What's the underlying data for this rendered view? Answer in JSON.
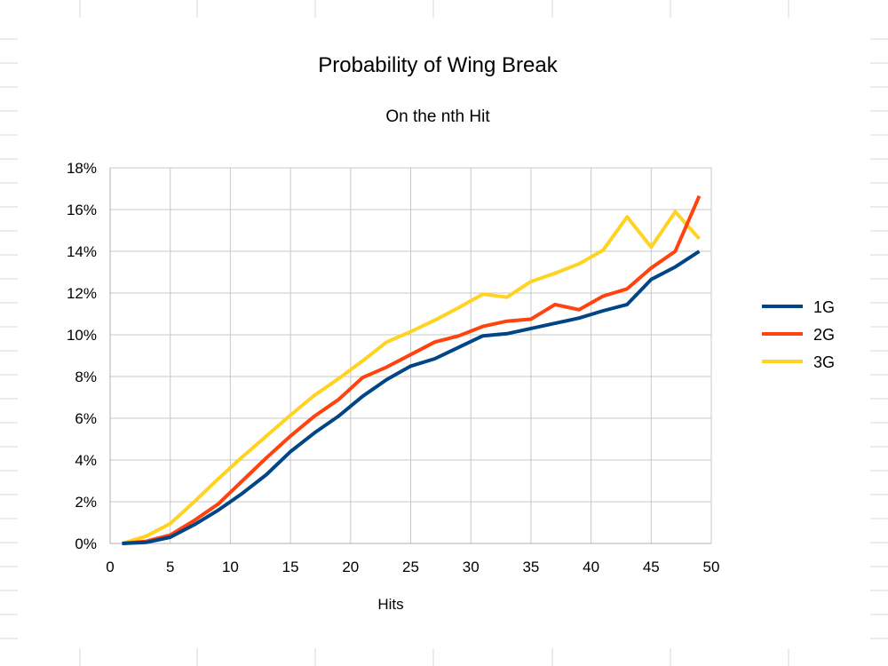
{
  "chart_data": {
    "type": "line",
    "title": "Probability of Wing Break",
    "subtitle": "On the nth Hit",
    "xlabel": "Hits",
    "ylabel": "",
    "xlim": [
      0,
      50
    ],
    "ylim": [
      0,
      18
    ],
    "x_ticks": [
      0,
      5,
      10,
      15,
      20,
      25,
      30,
      35,
      40,
      45,
      50
    ],
    "y_ticks": [
      0,
      2,
      4,
      6,
      8,
      10,
      12,
      14,
      16,
      18
    ],
    "y_tick_suffix": "%",
    "grid": true,
    "legend_position": "right",
    "x": [
      1,
      3,
      5,
      7,
      9,
      11,
      13,
      15,
      17,
      19,
      21,
      23,
      25,
      27,
      29,
      31,
      33,
      35,
      37,
      39,
      41,
      43,
      45,
      47,
      49
    ],
    "series": [
      {
        "name": "1G",
        "color": "#004586",
        "values": [
          0.0,
          0.05,
          0.3,
          0.9,
          1.6,
          2.4,
          3.3,
          4.4,
          5.3,
          6.1,
          7.05,
          7.85,
          8.5,
          8.85,
          9.4,
          9.95,
          10.05,
          10.3,
          10.55,
          10.8,
          11.15,
          11.45,
          12.65,
          13.25,
          14.0
        ]
      },
      {
        "name": "2G",
        "color": "#ff420e",
        "values": [
          0.0,
          0.1,
          0.4,
          1.1,
          1.9,
          3.0,
          4.1,
          5.15,
          6.1,
          6.9,
          7.95,
          8.45,
          9.05,
          9.65,
          9.95,
          10.4,
          10.65,
          10.75,
          11.45,
          11.2,
          11.85,
          12.2,
          13.2,
          14.0,
          16.65
        ]
      },
      {
        "name": "3G",
        "color": "#ffd320",
        "values": [
          0.0,
          0.35,
          0.95,
          2.0,
          3.1,
          4.15,
          5.15,
          6.15,
          7.1,
          7.9,
          8.75,
          9.65,
          10.15,
          10.7,
          11.3,
          11.95,
          11.8,
          12.55,
          12.95,
          13.4,
          14.05,
          15.65,
          14.2,
          15.9,
          14.6
        ]
      }
    ]
  }
}
